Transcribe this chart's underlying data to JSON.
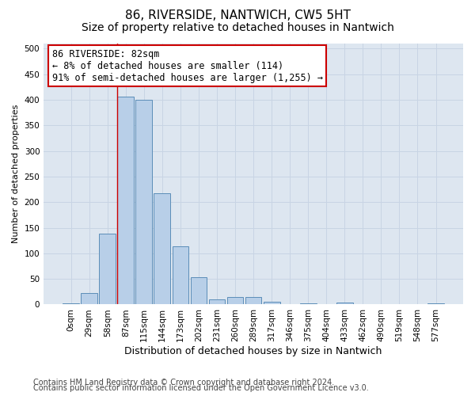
{
  "title_line1": "86, RIVERSIDE, NANTWICH, CW5 5HT",
  "title_line2": "Size of property relative to detached houses in Nantwich",
  "xlabel": "Distribution of detached houses by size in Nantwich",
  "ylabel": "Number of detached properties",
  "footnote_line1": "Contains HM Land Registry data © Crown copyright and database right 2024.",
  "footnote_line2": "Contains public sector information licensed under the Open Government Licence v3.0.",
  "bar_labels": [
    "0sqm",
    "29sqm",
    "58sqm",
    "87sqm",
    "115sqm",
    "144sqm",
    "173sqm",
    "202sqm",
    "231sqm",
    "260sqm",
    "289sqm",
    "317sqm",
    "346sqm",
    "375sqm",
    "404sqm",
    "433sqm",
    "462sqm",
    "490sqm",
    "519sqm",
    "548sqm",
    "577sqm"
  ],
  "bar_values": [
    3,
    22,
    138,
    407,
    400,
    217,
    114,
    53,
    10,
    15,
    15,
    5,
    0,
    2,
    0,
    4,
    0,
    0,
    0,
    0,
    2
  ],
  "bar_color": "#b8cfe8",
  "bar_edge_color": "#5b8db8",
  "annotation_line1": "86 RIVERSIDE: 82sqm",
  "annotation_line2": "← 8% of detached houses are smaller (114)",
  "annotation_line3": "91% of semi-detached houses are larger (1,255) →",
  "annotation_box_color": "#ffffff",
  "annotation_box_edge_color": "#cc0000",
  "vline_color": "#cc0000",
  "ylim_max": 510,
  "yticks": [
    0,
    50,
    100,
    150,
    200,
    250,
    300,
    350,
    400,
    450,
    500
  ],
  "grid_color": "#c8d4e4",
  "bg_color": "#dde6f0",
  "title1_fontsize": 11,
  "title2_fontsize": 10,
  "ylabel_fontsize": 8,
  "xlabel_fontsize": 9,
  "tick_fontsize": 7.5,
  "annotation_fontsize": 8.5,
  "footnote_fontsize": 7
}
